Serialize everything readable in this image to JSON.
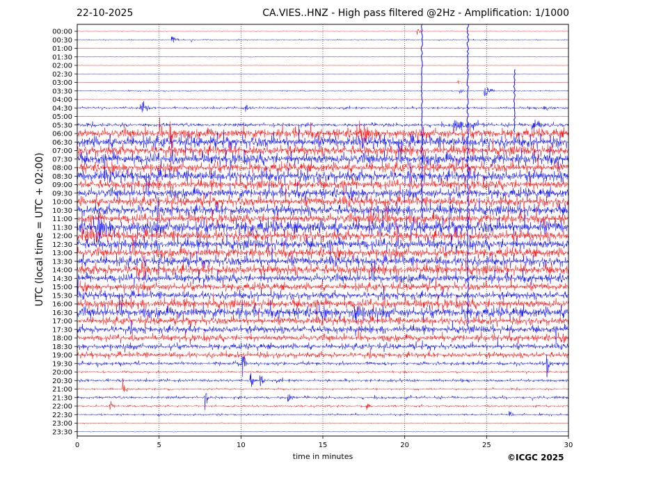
{
  "header": {
    "date": "22-10-2025",
    "title": "CA.VIES..HNZ - High pass filtered @2Hz - Amplification: 1/1000"
  },
  "footer": {
    "copyright": "©ICGC 2025"
  },
  "chart_data": {
    "type": "line",
    "title": "CA.VIES..HNZ - High pass filtered @2Hz - Amplification: 1/1000",
    "xlabel": "time in minutes",
    "ylabel": "UTC (local time = UTC + 02:00)",
    "xlim": [
      0,
      30
    ],
    "x_ticks": [
      0,
      5,
      10,
      15,
      20,
      25,
      30
    ],
    "vertical_gridlines_at": [
      5,
      10,
      15,
      20,
      25
    ],
    "grid": "vertical dotted",
    "row_labels": [
      "00:00",
      "00:30",
      "01:00",
      "01:30",
      "02:00",
      "02:30",
      "03:00",
      "03:30",
      "04:00",
      "04:30",
      "05:00",
      "05:30",
      "06:00",
      "06:30",
      "07:00",
      "07:30",
      "08:00",
      "08:30",
      "09:00",
      "09:30",
      "10:00",
      "10:30",
      "11:00",
      "11:30",
      "12:00",
      "12:30",
      "13:00",
      "13:30",
      "14:00",
      "14:30",
      "15:00",
      "15:30",
      "16:00",
      "16:30",
      "17:00",
      "17:30",
      "18:00",
      "18:30",
      "19:00",
      "19:30",
      "20:00",
      "20:30",
      "21:00",
      "21:30",
      "22:00",
      "22:30",
      "23:00",
      "23:30"
    ],
    "colors": {
      "even_rows": "#ff0000",
      "odd_rows": "#0000ff"
    },
    "row_noise_level": [
      0.3,
      0.6,
      0.2,
      0.3,
      0.2,
      0.2,
      0.3,
      0.6,
      0.4,
      1.2,
      0.2,
      2.0,
      5.0,
      6.0,
      5.5,
      6.0,
      5.0,
      6.0,
      5.0,
      5.0,
      5.0,
      5.5,
      5.0,
      7.0,
      5.5,
      5.5,
      5.0,
      5.0,
      5.5,
      4.5,
      4.0,
      4.0,
      5.0,
      5.5,
      4.0,
      4.0,
      3.5,
      3.0,
      3.0,
      2.0,
      1.0,
      1.5,
      1.0,
      1.5,
      1.0,
      1.0,
      0.5,
      0.3
    ],
    "events": [
      {
        "row": 0,
        "t": 20.8,
        "amp": 4,
        "dur": 0.3
      },
      {
        "row": 1,
        "t": 5.8,
        "amp": 8,
        "dur": 0.5
      },
      {
        "row": 1,
        "t": 7.0,
        "amp": 3,
        "dur": 0.2
      },
      {
        "row": 6,
        "t": 23.3,
        "amp": 3,
        "dur": 0.2
      },
      {
        "row": 7,
        "t": 23.4,
        "amp": 4,
        "dur": 0.5
      },
      {
        "row": 7,
        "t": 24.9,
        "amp": 10,
        "dur": 0.6
      },
      {
        "row": 9,
        "t": 3.9,
        "amp": 9,
        "dur": 0.6
      },
      {
        "row": 9,
        "t": 10.2,
        "amp": 4,
        "dur": 0.6
      },
      {
        "row": 9,
        "t": 28.5,
        "amp": 5,
        "dur": 0.8
      },
      {
        "row": 11,
        "t": 23.0,
        "amp": 8,
        "dur": 2.0
      },
      {
        "row": 11,
        "t": 27.8,
        "amp": 8,
        "dur": 1.2
      },
      {
        "row": 12,
        "t": 17.1,
        "amp": 7,
        "dur": 1.8
      },
      {
        "row": 12,
        "t": 5.7,
        "amp": 12,
        "dur": 0.6
      },
      {
        "row": 22,
        "t": 17.8,
        "amp": 8,
        "dur": 2.2
      },
      {
        "row": 23,
        "t": 1.2,
        "amp": 10,
        "dur": 1.0
      },
      {
        "row": 24,
        "t": 0.3,
        "amp": 9,
        "dur": 0.8
      },
      {
        "row": 28,
        "t": 3.6,
        "amp": 12,
        "dur": 0.8
      },
      {
        "row": 33,
        "t": 16.8,
        "amp": 10,
        "dur": 1.5
      },
      {
        "row": 39,
        "t": 10.1,
        "amp": 16,
        "dur": 0.3
      },
      {
        "row": 39,
        "t": 28.7,
        "amp": 18,
        "dur": 0.3
      },
      {
        "row": 41,
        "t": 10.6,
        "amp": 10,
        "dur": 0.3
      },
      {
        "row": 41,
        "t": 11.2,
        "amp": 8,
        "dur": 0.3
      },
      {
        "row": 42,
        "t": 2.8,
        "amp": 12,
        "dur": 0.3
      },
      {
        "row": 43,
        "t": 7.8,
        "amp": 9,
        "dur": 0.3
      },
      {
        "row": 43,
        "t": 12.9,
        "amp": 7,
        "dur": 0.4
      },
      {
        "row": 44,
        "t": 2.0,
        "amp": 7,
        "dur": 0.4
      },
      {
        "row": 44,
        "t": 17.7,
        "amp": 8,
        "dur": 0.3
      },
      {
        "row": 45,
        "t": 26.4,
        "amp": 7,
        "dur": 0.3
      }
    ],
    "spikes": [
      {
        "t": 21.05,
        "from_row": 0,
        "to_row": 22
      },
      {
        "t": 23.85,
        "from_row": 0,
        "to_row": 35
      },
      {
        "t": 26.7,
        "from_row": 5,
        "to_row": 12
      }
    ]
  }
}
